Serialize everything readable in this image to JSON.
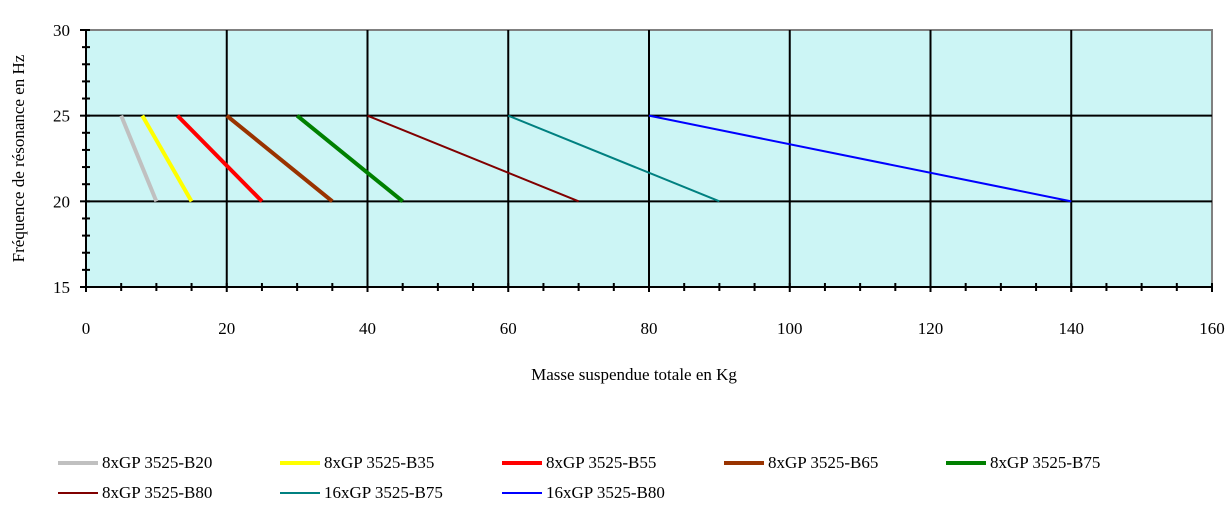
{
  "chart_data": {
    "type": "line",
    "xlabel": "Masse suspendue totale en Kg",
    "ylabel": "Fréquence de résonance en Hz",
    "xlim": [
      0,
      160
    ],
    "ylim": [
      15,
      30
    ],
    "x_ticks": [
      0,
      20,
      40,
      60,
      80,
      100,
      120,
      140,
      160
    ],
    "y_ticks": [
      15,
      20,
      25,
      30
    ],
    "grid": true,
    "plot_background": "#CCF5F5",
    "legend_position": "bottom",
    "series": [
      {
        "name": "8xGP 3525-B20",
        "color": "#C0C0C0",
        "width": 4,
        "x": [
          5,
          10
        ],
        "y": [
          25,
          20
        ]
      },
      {
        "name": "8xGP 3525-B35",
        "color": "#FFFF00",
        "width": 4,
        "x": [
          8,
          15
        ],
        "y": [
          25,
          20
        ]
      },
      {
        "name": "8xGP 3525-B55",
        "color": "#FF0000",
        "width": 4,
        "x": [
          13,
          25
        ],
        "y": [
          25,
          20
        ]
      },
      {
        "name": "8xGP 3525-B65",
        "color": "#993300",
        "width": 4,
        "x": [
          20,
          35
        ],
        "y": [
          25,
          20
        ]
      },
      {
        "name": "8xGP 3525-B75",
        "color": "#008000",
        "width": 4,
        "x": [
          30,
          45
        ],
        "y": [
          25,
          20
        ]
      },
      {
        "name": "8xGP 3525-B80",
        "color": "#800000",
        "width": 2,
        "x": [
          40,
          70
        ],
        "y": [
          25,
          20
        ]
      },
      {
        "name": "16xGP 3525-B75",
        "color": "#008080",
        "width": 2,
        "x": [
          60,
          90
        ],
        "y": [
          25,
          20
        ]
      },
      {
        "name": "16xGP 3525-B80",
        "color": "#0000FF",
        "width": 2,
        "x": [
          80,
          140
        ],
        "y": [
          25,
          20
        ]
      }
    ]
  }
}
